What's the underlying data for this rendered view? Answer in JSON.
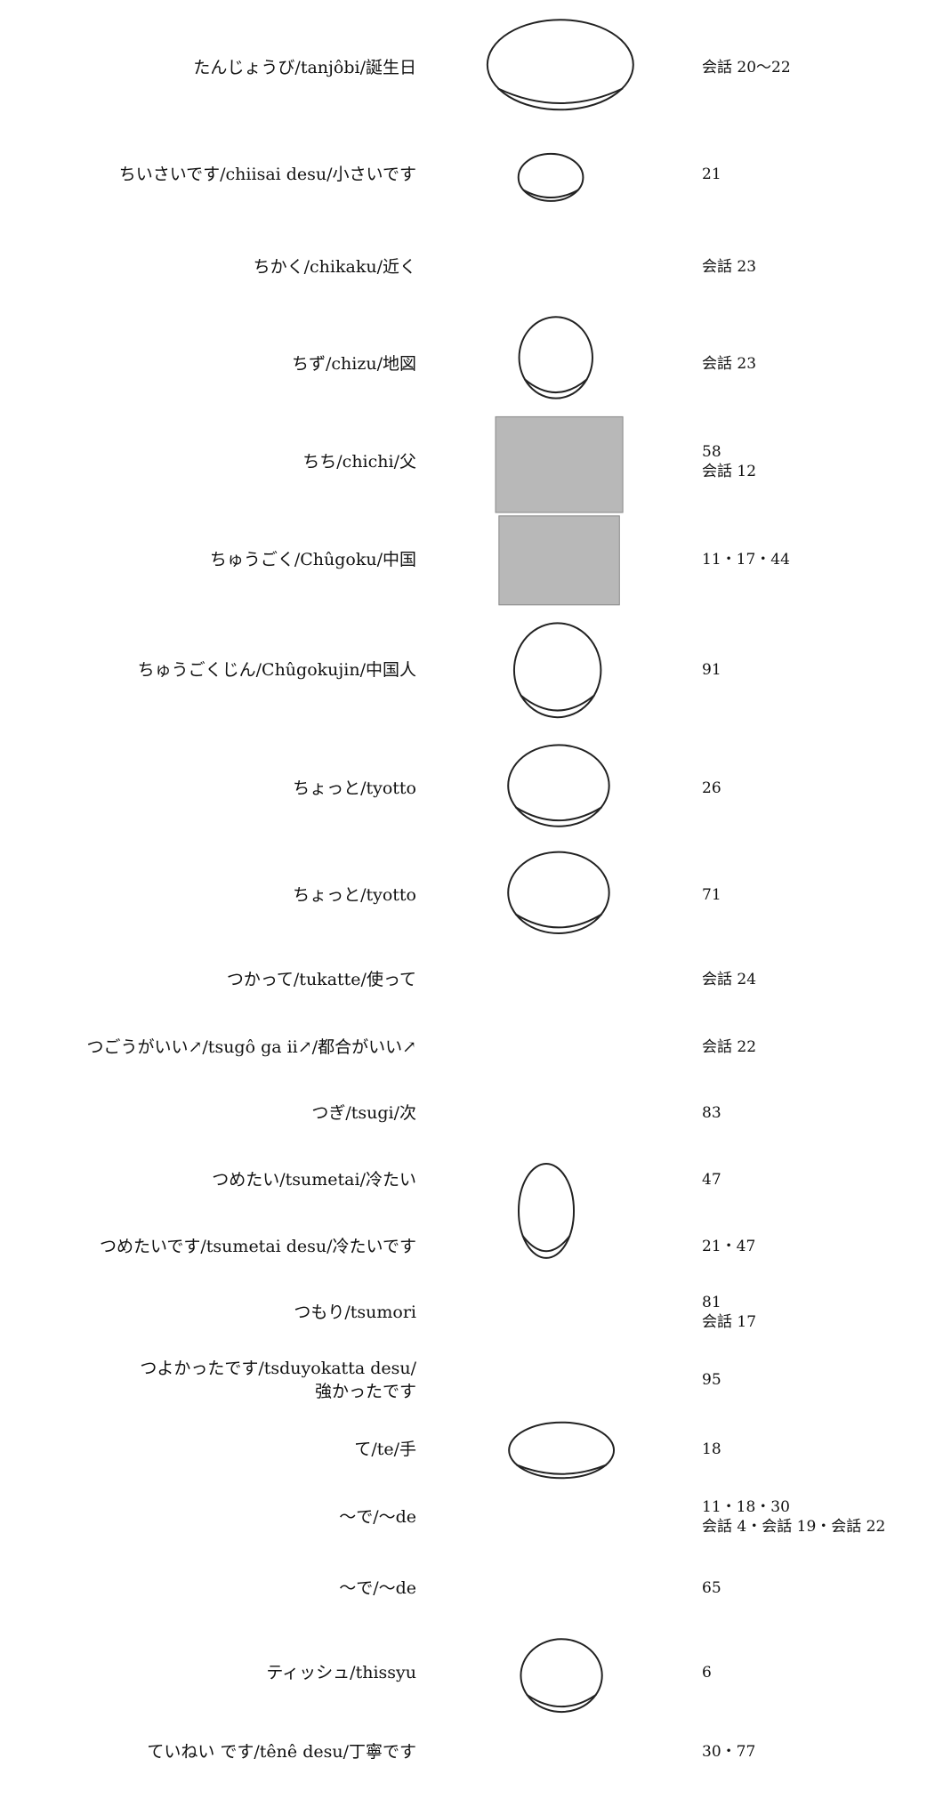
{
  "entries": [
    {
      "term": [
        "たんじょうび/tanjôbi/誕生日"
      ],
      "pages": [
        "会話 20〜22"
      ]
    },
    {
      "term": [
        "ちいさいです/chiisai desu/小さいです"
      ],
      "pages": [
        "21"
      ]
    },
    {
      "term": [
        "ちかく/chikaku/近く"
      ],
      "pages": [
        "会話 23"
      ]
    },
    {
      "term": [
        "ちず/chizu/地図"
      ],
      "pages": [
        "会話 23"
      ]
    },
    {
      "term": [
        "ちち/chichi/父"
      ],
      "pages": [
        "58",
        "会話 12"
      ]
    },
    {
      "term": [
        "ちゅうごく/Chûgoku/中国"
      ],
      "pages": [
        "11・17・44"
      ]
    },
    {
      "term": [
        "ちゅうごくじん/Chûgokujin/中国人"
      ],
      "pages": [
        "91"
      ]
    },
    {
      "term": [
        "ちょっと/tyotto"
      ],
      "pages": [
        "26"
      ]
    },
    {
      "term": [
        "ちょっと/tyotto"
      ],
      "pages": [
        "71"
      ]
    },
    {
      "term": [
        "つかって/tukatte/使って"
      ],
      "pages": [
        "会話 24"
      ]
    },
    {
      "term": [
        "つごうがいい↗/tsugô ga ii↗/都合がいい↗"
      ],
      "pages": [
        "会話 22"
      ]
    },
    {
      "term": [
        "つぎ/tsugi/次"
      ],
      "pages": [
        "83"
      ]
    },
    {
      "term": [
        "つめたい/tsumetai/冷たい"
      ],
      "pages": [
        "47"
      ]
    },
    {
      "term": [
        "つめたいです/tsumetai desu/冷たいです"
      ],
      "pages": [
        "21・47"
      ]
    },
    {
      "term": [
        "つもり/tsumori"
      ],
      "pages": [
        "81",
        "会話 17"
      ]
    },
    {
      "term": [
        "つよかったです/tsduyokatta desu/",
        "強かったです"
      ],
      "pages": [
        "95"
      ]
    },
    {
      "term": [
        "て/te/手"
      ],
      "pages": [
        "18"
      ]
    },
    {
      "term": [
        "〜で/〜de"
      ],
      "pages": [
        "11・18・30",
        "会話 4・会話 19・会話 22"
      ]
    },
    {
      "term": [
        "〜で/〜de"
      ],
      "pages": [
        "65"
      ]
    },
    {
      "term": [
        "ティッシュ/thissyu"
      ],
      "pages": [
        "6"
      ]
    },
    {
      "term": [
        "ていねい です/tênê desu/丁寧です"
      ],
      "pages": [
        "30・77"
      ]
    }
  ]
}
